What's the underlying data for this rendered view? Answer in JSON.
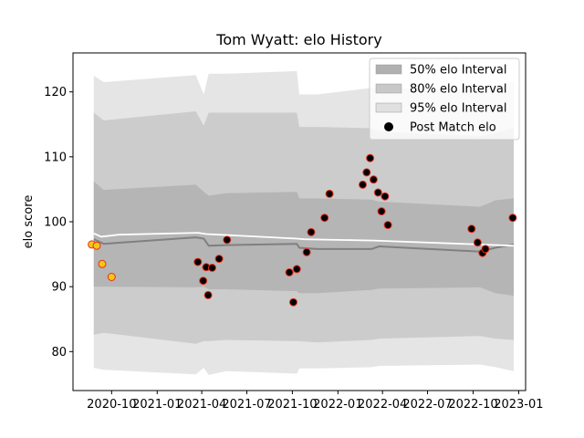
{
  "chart_data": {
    "type": "line",
    "title": "Tom Wyatt: elo History",
    "xlabel": "",
    "ylabel": "elo score",
    "xlim": [
      "2020-07-15",
      "2023-01-15"
    ],
    "ylim": [
      74,
      126
    ],
    "x_ticks": [
      "2020-10",
      "2021-01",
      "2021-04",
      "2021-07",
      "2021-10",
      "2022-01",
      "2022-04",
      "2022-07",
      "2022-10",
      "2023-01"
    ],
    "y_ticks": [
      80,
      90,
      100,
      110,
      120
    ],
    "grid": false,
    "legend_position": "top-right",
    "legend": [
      {
        "label": "50% elo Interval",
        "kind": "band",
        "color": "#b0b0b0"
      },
      {
        "label": "80% elo Interval",
        "kind": "band",
        "color": "#c8c8c8"
      },
      {
        "label": "95% elo Interval",
        "kind": "band",
        "color": "#e0e0e0"
      },
      {
        "label": "Post Match elo",
        "kind": "marker",
        "color": "#000000"
      }
    ],
    "intervals": {
      "x": [
        "2020-08-26",
        "2020-09-15",
        "2021-03-20",
        "2021-04-05",
        "2021-04-15",
        "2021-05-20",
        "2021-10-10",
        "2021-10-15",
        "2021-11-20",
        "2022-03-10",
        "2022-03-25",
        "2022-10-15",
        "2022-11-15",
        "2022-12-22"
      ],
      "median": [
        97.3,
        96.6,
        97.6,
        97.4,
        96.3,
        96.4,
        96.6,
        96.0,
        95.8,
        95.8,
        96.2,
        95.4,
        96.0,
        96.5
      ],
      "p50": {
        "upper": [
          106.2,
          104.9,
          105.7,
          104.6,
          104.0,
          104.4,
          104.6,
          103.6,
          103.6,
          103.4,
          103.1,
          102.3,
          103.3,
          103.6
        ],
        "lower": [
          90.0,
          90.0,
          89.9,
          90.0,
          89.6,
          89.6,
          89.3,
          89.0,
          89.0,
          89.5,
          89.7,
          89.9,
          89.0,
          88.6
        ]
      },
      "p80": {
        "upper": [
          116.8,
          115.6,
          117.0,
          114.8,
          116.8,
          116.8,
          116.8,
          114.6,
          114.6,
          114.4,
          113.9,
          113.2,
          113.6,
          114.5
        ],
        "lower": [
          82.6,
          82.9,
          81.2,
          81.6,
          81.6,
          81.8,
          81.6,
          81.6,
          81.4,
          81.8,
          82.0,
          82.4,
          82.0,
          81.8
        ]
      },
      "p95": {
        "upper": [
          122.5,
          121.5,
          122.6,
          119.6,
          122.8,
          122.8,
          123.2,
          119.6,
          119.6,
          120.6,
          120.6,
          120.4,
          121.0,
          121.6
        ],
        "lower": [
          77.5,
          77.2,
          76.5,
          77.5,
          76.4,
          77.0,
          76.6,
          77.4,
          77.4,
          77.6,
          77.8,
          78.0,
          77.6,
          77.0
        ]
      }
    },
    "mean_line": {
      "x": [
        "2020-08-26",
        "2020-09-10",
        "2020-10-15",
        "2021-03-25",
        "2021-04-10",
        "2021-10-10",
        "2021-10-25",
        "2022-03-15",
        "2022-12-22"
      ],
      "values": [
        98.2,
        97.7,
        98.0,
        98.3,
        98.1,
        97.4,
        97.3,
        97.1,
        96.3
      ]
    },
    "early_matches": {
      "marker": "orange-outline",
      "x": [
        "2020-08-22",
        "2020-09-01",
        "2020-09-12",
        "2020-10-01"
      ],
      "values": [
        96.5,
        96.3,
        93.5,
        91.5
      ]
    },
    "post_match": {
      "marker": "black-filled",
      "x": [
        "2021-03-24",
        "2021-04-04",
        "2021-04-10",
        "2021-04-14",
        "2021-04-22",
        "2021-05-06",
        "2021-05-22",
        "2021-09-25",
        "2021-10-03",
        "2021-10-10",
        "2021-10-30",
        "2021-11-08",
        "2021-12-05",
        "2021-12-15",
        "2022-02-20",
        "2022-02-28",
        "2022-03-07",
        "2022-03-14",
        "2022-03-23",
        "2022-03-30",
        "2022-04-06",
        "2022-04-12",
        "2022-09-28",
        "2022-10-10",
        "2022-10-20",
        "2022-10-26",
        "2022-12-20"
      ],
      "values": [
        93.8,
        90.9,
        93.0,
        88.7,
        92.9,
        94.3,
        97.2,
        92.2,
        87.6,
        92.7,
        95.3,
        98.4,
        100.6,
        104.3,
        105.7,
        107.6,
        109.8,
        106.5,
        104.5,
        101.6,
        103.9,
        99.5,
        98.9,
        96.8,
        95.2,
        95.8,
        100.6
      ]
    }
  }
}
